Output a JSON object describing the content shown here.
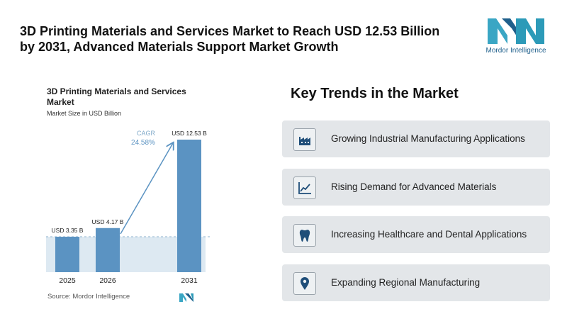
{
  "header": {
    "title": "3D Printing Materials and Services Market to Reach USD 12.53 Billion by 2031, Advanced Materials Support Market Growth",
    "logo": "Mordor Intelligence"
  },
  "chart_data": {
    "type": "bar",
    "title": "3D Printing Materials and Services Market",
    "subtitle": "Market Size in USD Billion",
    "categories": [
      "2025",
      "2026",
      "2031"
    ],
    "values": [
      3.35,
      4.17,
      12.53
    ],
    "value_labels": [
      "USD 3.35 B",
      "USD 4.17 B",
      "USD 12.53 B"
    ],
    "color": "#5b93c2",
    "annotations": [
      "CAGR",
      "24.58%"
    ],
    "source": "Source: Mordor Intelligence"
  },
  "trends": {
    "title": "Key Trends in the Market",
    "items": [
      "Growing Industrial Manufacturing Applications",
      "Rising Demand for Advanced Materials",
      "Increasing Healthcare and Dental Applications",
      "Expanding Regional Manufacturing"
    ]
  }
}
